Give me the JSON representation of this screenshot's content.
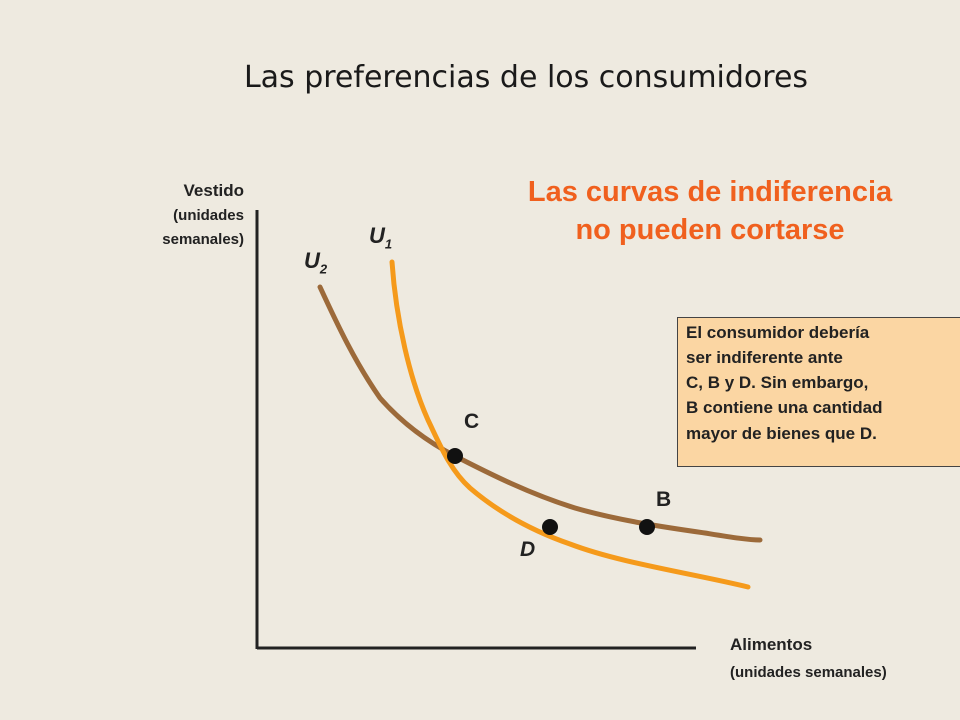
{
  "title": "Las preferencias de los consumidores",
  "headline": {
    "line1": "Las curvas de indiferencia",
    "line2": "no pueden cortarse"
  },
  "axes": {
    "y_label": "Vestido",
    "y_unit_line1": "(unidades",
    "y_unit_line2": "semanales)",
    "x_label": "Alimentos",
    "x_unit": "(unidades semanales)"
  },
  "curves": [
    {
      "label": "U",
      "subscript": "1",
      "color": "#F59A1B"
    },
    {
      "label": "U",
      "subscript": "2",
      "color": "#9C6A3A"
    }
  ],
  "points": [
    {
      "label": "C"
    },
    {
      "label": "B"
    },
    {
      "label": "D"
    }
  ],
  "note": {
    "line1": "El consumidor debería",
    "line2": "ser indiferente ante",
    "line3": "C, B y D.  Sin embargo,",
    "line4": "B contiene una cantidad",
    "line5": "mayor de bienes que D."
  },
  "colors": {
    "background": "#EEEAE0",
    "headline": "#F0601E",
    "note_background": "#FBD6A3",
    "axis": "#222222",
    "point": "#111111"
  }
}
